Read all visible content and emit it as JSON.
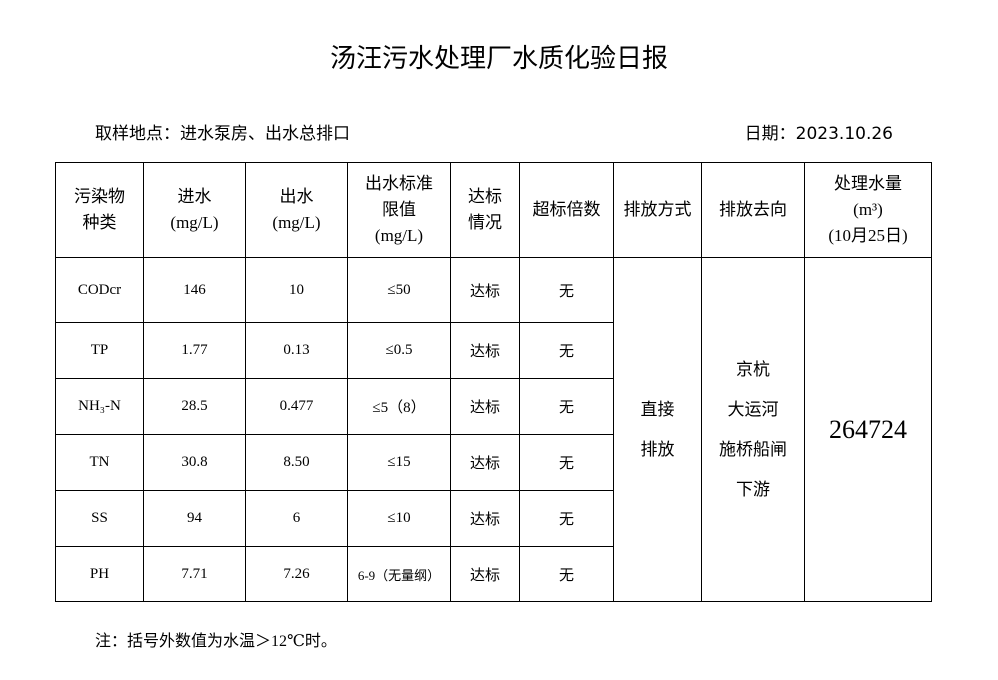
{
  "title": "汤汪污水处理厂水质化验日报",
  "location": "取样地点：进水泵房、出水总排口",
  "date": "日期：2023.10.26",
  "table": {
    "header": [
      [
        "污染物",
        "种类"
      ],
      [
        "进水",
        "(mg/L)"
      ],
      [
        "出水",
        "(mg/L)"
      ],
      [
        "出水标准",
        "限值",
        "(mg/L)"
      ],
      [
        "达标",
        "情况"
      ],
      [
        "超标倍数"
      ],
      [
        "排放方式"
      ],
      [
        "排放去向"
      ],
      [
        "处理水量",
        "(m³)",
        "(10月25日)"
      ]
    ],
    "rows": [
      [
        "CODcr",
        "146",
        "10",
        "≤50",
        "达标",
        "无"
      ],
      [
        "TP",
        "1.77",
        "0.13",
        "≤0.5",
        "达标",
        "无"
      ],
      [
        "NH₃-N",
        "28.5",
        "0.477",
        "≤5（8）",
        "达标",
        "无"
      ],
      [
        "TN",
        "30.8",
        "8.50",
        "≤15",
        "达标",
        "无"
      ],
      [
        "SS",
        "94",
        "6",
        "≤10",
        "达标",
        "无"
      ],
      [
        "PH",
        "7.71",
        "7.26",
        "6-9（无量纲）",
        "达标",
        "无"
      ]
    ],
    "discharge_method": [
      "直接",
      "排放"
    ],
    "destination": [
      "京杭",
      "大运河",
      "施桥船闸",
      "下游"
    ],
    "volume": "264724"
  },
  "note": "注：括号外数值为水温＞12℃时。"
}
